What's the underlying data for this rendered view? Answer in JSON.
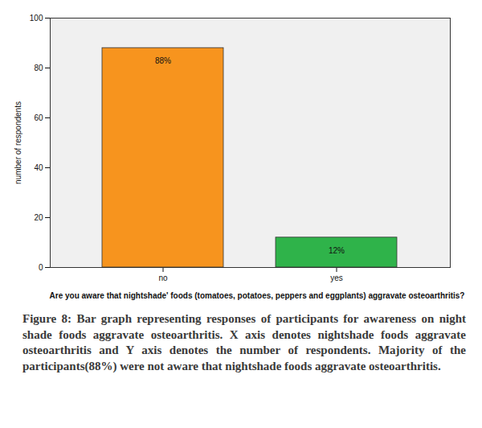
{
  "chart_data": {
    "type": "bar",
    "categories": [
      "no",
      "yes"
    ],
    "values": [
      88,
      12
    ],
    "value_labels": [
      "88%",
      "12%"
    ],
    "colors": [
      "#f7941e",
      "#2fb34a"
    ],
    "data_labels": true,
    "y_label": "number of respondents",
    "x_label": "Are you aware that nightshade' foods (tomatoes, potatoes, peppers and eggplants) aggravate osteoarthritis?",
    "caption": "Figure 8: Bar graph representing responses of participants for awareness on night shade foods aggravate osteoarthritis. X axis denotes nightshade foods aggravate osteoarthritis and Y axis denotes the number of respondents. Majority of the participants(88%) were not aware that nightshade foods aggravate osteoarthritis.",
    "ylim": [
      0,
      100
    ],
    "yticks": [
      0,
      20,
      40,
      60,
      80,
      100
    ]
  }
}
